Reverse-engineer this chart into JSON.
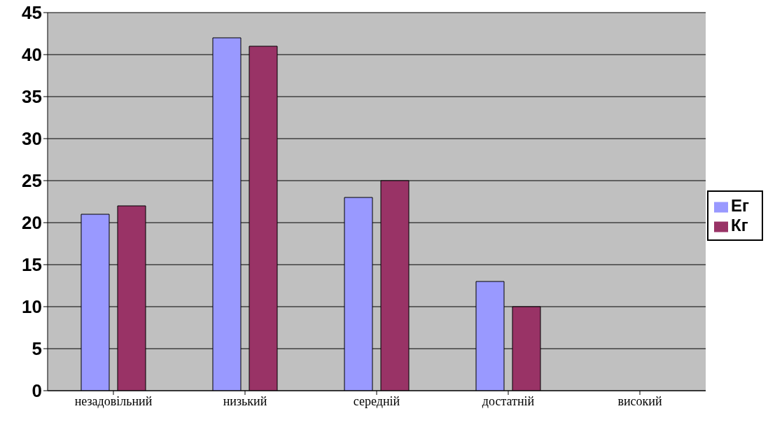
{
  "chart_data": {
    "type": "bar",
    "categories": [
      "незадовільний",
      "низький",
      "середній",
      "достатній",
      "високий"
    ],
    "series": [
      {
        "name": "Ег",
        "color": "#9999ff",
        "values": [
          21,
          42,
          23,
          13,
          0
        ]
      },
      {
        "name": "Кг",
        "color": "#993366",
        "values": [
          22,
          41,
          25,
          10,
          0
        ]
      }
    ],
    "ylim": [
      0,
      45
    ],
    "yticks": [
      0,
      5,
      10,
      15,
      20,
      25,
      30,
      35,
      40,
      45
    ],
    "grid": "y",
    "legend": "right"
  }
}
